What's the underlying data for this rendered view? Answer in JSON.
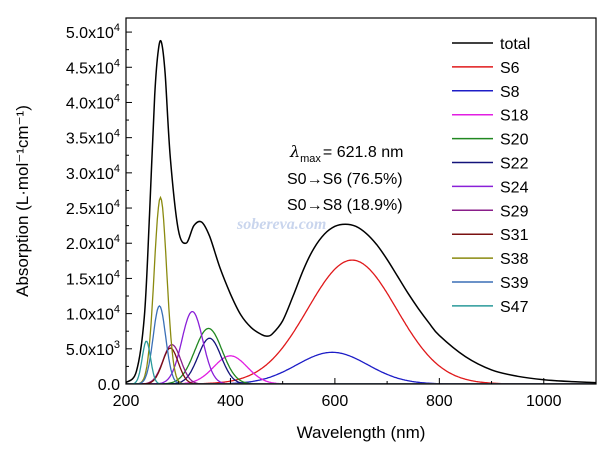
{
  "chart_data": {
    "type": "line",
    "xlabel": "Wavelength (nm)",
    "ylabel": "Absorption (L·mol⁻¹cm⁻¹)",
    "xlim": [
      200,
      1100
    ],
    "ylim": [
      0,
      52000
    ],
    "x_ticks": [
      200,
      400,
      600,
      800,
      1000
    ],
    "y_ticks": [
      {
        "value": 0,
        "label": "0.0"
      },
      {
        "value": 5000,
        "label": "5.0x10³"
      },
      {
        "value": 10000,
        "label": "1.0x10⁴"
      },
      {
        "value": 15000,
        "label": "1.5x10⁴"
      },
      {
        "value": 20000,
        "label": "2.0x10⁴"
      },
      {
        "value": 25000,
        "label": "2.5x10⁴"
      },
      {
        "value": 30000,
        "label": "3.0x10⁴"
      },
      {
        "value": 35000,
        "label": "3.5x10⁴"
      },
      {
        "value": 40000,
        "label": "4.0x10⁴"
      },
      {
        "value": 45000,
        "label": "4.5x10⁴"
      },
      {
        "value": 50000,
        "label": "5.0x10⁴"
      }
    ],
    "grid": false,
    "legend_position": "top-right",
    "series": [
      {
        "name": "total",
        "color": "#000000",
        "x": [
          200,
          220,
          235,
          245,
          255,
          262,
          268,
          275,
          285,
          300,
          315,
          330,
          345,
          360,
          380,
          400,
          420,
          440,
          460,
          470,
          480,
          500,
          520,
          540,
          560,
          580,
          600,
          620,
          640,
          660,
          680,
          700,
          720,
          740,
          760,
          780,
          800,
          850,
          900,
          950,
          1000,
          1050,
          1100
        ],
        "y": [
          200,
          1800,
          9500,
          24000,
          41000,
          47500,
          48500,
          44000,
          32000,
          22000,
          20000,
          22500,
          23000,
          21000,
          16500,
          12800,
          9800,
          8000,
          7000,
          6800,
          7100,
          9000,
          12500,
          16300,
          19300,
          21300,
          22400,
          22700,
          22400,
          21400,
          19800,
          17700,
          15300,
          12900,
          10700,
          8700,
          6900,
          3900,
          2000,
          1100,
          600,
          350,
          200
        ]
      },
      {
        "name": "S6",
        "color": "#e0191b",
        "peak": 633,
        "height": 17600,
        "width": 85
      },
      {
        "name": "S8",
        "color": "#1d1dc7",
        "peak": 595,
        "height": 4500,
        "width": 68
      },
      {
        "name": "S18",
        "color": "#e21ee2",
        "peak": 400,
        "height": 4000,
        "width": 32
      },
      {
        "name": "S20",
        "color": "#218821",
        "peak": 358,
        "height": 7900,
        "width": 26
      },
      {
        "name": "S22",
        "color": "#13137a",
        "peak": 360,
        "height": 6500,
        "width": 22
      },
      {
        "name": "S24",
        "color": "#8a20d8",
        "peak": 327,
        "height": 10300,
        "width": 20
      },
      {
        "name": "S29",
        "color": "#8a1e8a",
        "peak": 288,
        "height": 5600,
        "width": 17
      },
      {
        "name": "S31",
        "color": "#7a1010",
        "peak": 285,
        "height": 5100,
        "width": 15
      },
      {
        "name": "S38",
        "color": "#8a8a0f",
        "peak": 266,
        "height": 26500,
        "width": 12
      },
      {
        "name": "S39",
        "color": "#3a6fb6",
        "peak": 264,
        "height": 11100,
        "width": 12
      },
      {
        "name": "S47",
        "color": "#2a9a9a",
        "peak": 239,
        "height": 6100,
        "width": 8
      }
    ],
    "annotation": {
      "lambda_symbol": "λ",
      "max_subscript": "max",
      "lambda_value": "= 621.8 nm",
      "line2": "S0→S6 (76.5%)",
      "line3": "S0→S8 (18.9%)"
    },
    "watermark": "sobereva.com"
  }
}
